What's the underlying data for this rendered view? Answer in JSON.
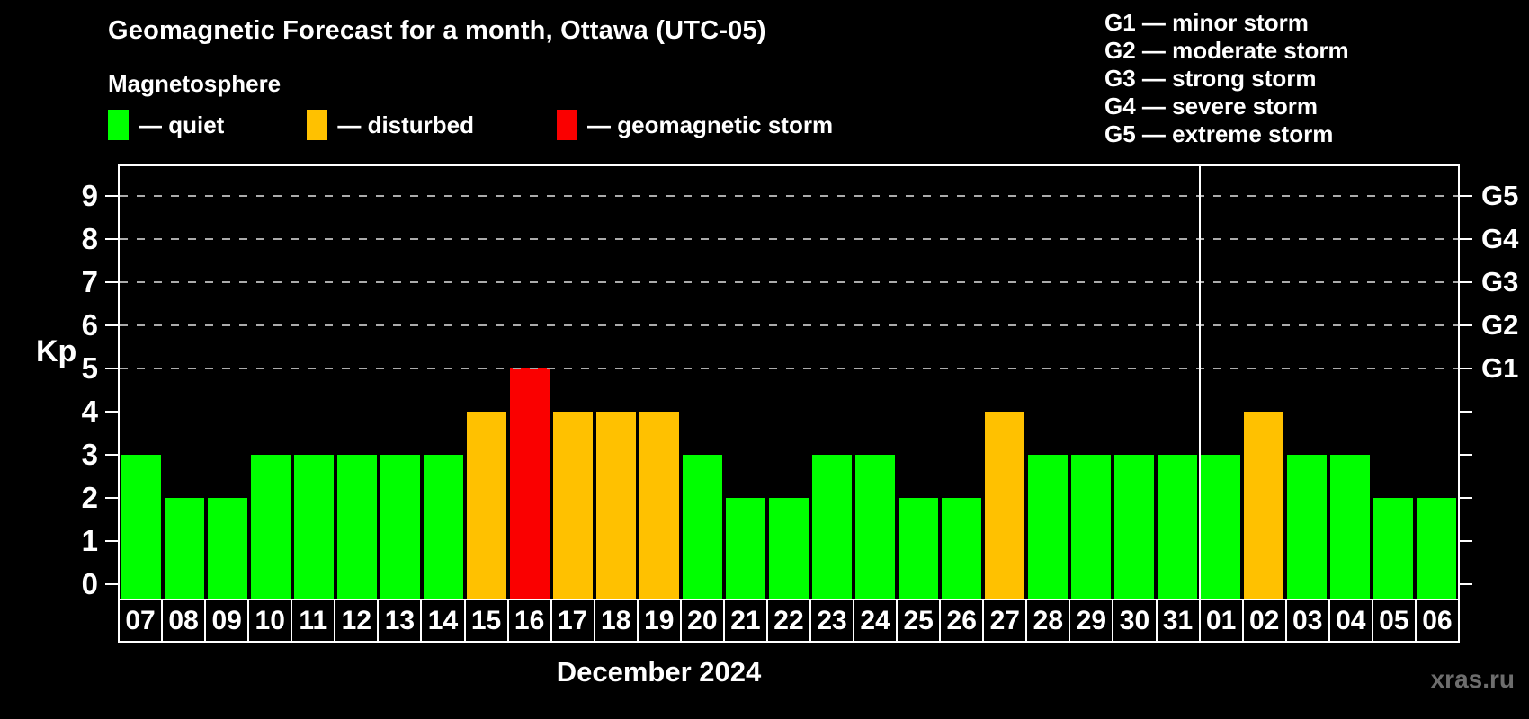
{
  "header": {
    "title": "Geomagnetic Forecast for a month, Ottawa (UTC-05)",
    "subtitle": "Magnetosphere"
  },
  "legend": {
    "items": [
      {
        "key": "quiet",
        "label": "— quiet",
        "color": "#00ff00"
      },
      {
        "key": "disturbed",
        "label": "— disturbed",
        "color": "#ffc100"
      },
      {
        "key": "storm",
        "label": "— geomagnetic storm",
        "color": "#fa0000"
      }
    ]
  },
  "storm_scale": {
    "items": [
      {
        "code": "G1",
        "text": "G1 — minor storm"
      },
      {
        "code": "G2",
        "text": "G2 — moderate storm"
      },
      {
        "code": "G3",
        "text": "G3 — strong storm"
      },
      {
        "code": "G4",
        "text": "G4 — severe storm"
      },
      {
        "code": "G5",
        "text": "G5 — extreme storm"
      }
    ]
  },
  "axis": {
    "y_label": "Kp",
    "x_caption": "December 2024"
  },
  "watermark": "xras.ru",
  "chart_data": {
    "type": "bar",
    "title": "Geomagnetic Forecast for a month, Ottawa (UTC-05)",
    "subtitle": "Magnetosphere",
    "ylabel": "Kp",
    "xlabel": "December 2024",
    "ylim": [
      0,
      9
    ],
    "y_ticks": [
      0,
      1,
      2,
      3,
      4,
      5,
      6,
      7,
      8,
      9
    ],
    "gridlines": [
      5,
      6,
      7,
      8,
      9
    ],
    "grid_style": "dashed horizontal lines at storm levels only",
    "legend_position": "top",
    "categories": [
      "07",
      "08",
      "09",
      "10",
      "11",
      "12",
      "13",
      "14",
      "15",
      "16",
      "17",
      "18",
      "19",
      "20",
      "21",
      "22",
      "23",
      "24",
      "25",
      "26",
      "27",
      "28",
      "29",
      "30",
      "31",
      "01",
      "02",
      "03",
      "04",
      "05",
      "06"
    ],
    "values": [
      3,
      2,
      2,
      3,
      3,
      3,
      3,
      3,
      4,
      5,
      4,
      4,
      4,
      3,
      2,
      2,
      3,
      3,
      2,
      2,
      4,
      3,
      3,
      3,
      3,
      3,
      4,
      3,
      3,
      2,
      2
    ],
    "bar_colors": [
      "#00ff00",
      "#00ff00",
      "#00ff00",
      "#00ff00",
      "#00ff00",
      "#00ff00",
      "#00ff00",
      "#00ff00",
      "#ffc100",
      "#fa0000",
      "#ffc100",
      "#ffc100",
      "#ffc100",
      "#00ff00",
      "#00ff00",
      "#00ff00",
      "#00ff00",
      "#00ff00",
      "#00ff00",
      "#00ff00",
      "#ffc100",
      "#00ff00",
      "#00ff00",
      "#00ff00",
      "#00ff00",
      "#00ff00",
      "#ffc100",
      "#00ff00",
      "#00ff00",
      "#00ff00",
      "#00ff00"
    ],
    "color_rule": {
      "quiet_kp_0_3": "#00ff00",
      "disturbed_kp_4": "#ffc100",
      "storm_kp_5_plus": "#fa0000"
    },
    "right_axis_labels": [
      {
        "kp": 5,
        "label": "G1"
      },
      {
        "kp": 6,
        "label": "G2"
      },
      {
        "kp": 7,
        "label": "G3"
      },
      {
        "kp": 8,
        "label": "G4"
      },
      {
        "kp": 9,
        "label": "G5"
      }
    ],
    "month_separator_after_index": 24
  }
}
